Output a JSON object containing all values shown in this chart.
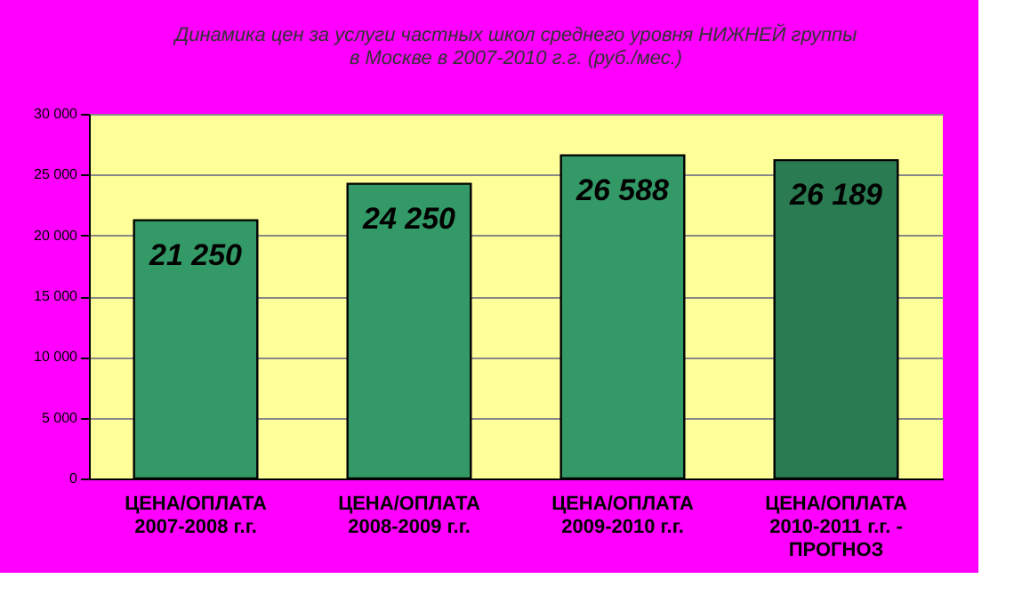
{
  "chart_data": {
    "type": "bar",
    "title": [
      "Динамика цен за услуги частных школ среднего уровня НИЖНЕЙ группы",
      "в Москве в 2007-2010 г.г. (руб./мес.)"
    ],
    "categories": [
      "ЦЕНА/ОПЛАТА\n2007-2008 г.г.",
      "ЦЕНА/ОПЛАТА\n2008-2009 г.г.",
      "ЦЕНА/ОПЛАТА\n2009-2010 г.г.",
      "ЦЕНА/ОПЛАТА\n2010-2011 г.г. -\nПРОГНОЗ"
    ],
    "values": [
      21250,
      24250,
      26588,
      26189
    ],
    "value_labels": [
      "21 250",
      "24 250",
      "26 588",
      "26 189"
    ],
    "colors": [
      "#339966",
      "#339966",
      "#339966",
      "#2a7a52"
    ],
    "ylim": [
      0,
      30000
    ],
    "yticks": [
      {
        "value": 0,
        "label": "0"
      },
      {
        "value": 5000,
        "label": "5 000"
      },
      {
        "value": 10000,
        "label": "10 000"
      },
      {
        "value": 15000,
        "label": "15 000"
      },
      {
        "value": 20000,
        "label": "20 000"
      },
      {
        "value": 25000,
        "label": "25 000"
      },
      {
        "value": 30000,
        "label": "30 000"
      }
    ],
    "grid": "y"
  }
}
